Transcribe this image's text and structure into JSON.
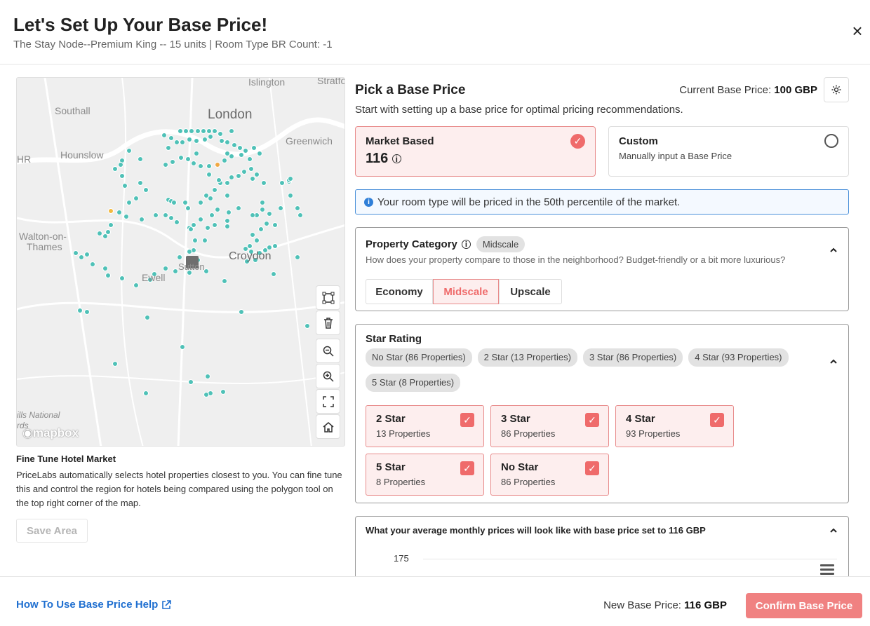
{
  "header": {
    "title": "Let's Set Up Your Base Price!",
    "subtitle": "The Stay Node--Premium King -- 15 units | Room Type BR Count: -1",
    "close_icon": "close-icon"
  },
  "map": {
    "labels": {
      "islington": "Islington",
      "stratford": "Stratford",
      "southall": "Southall",
      "london": "London",
      "greenwich": "Greenwich",
      "hounslow": "Hounslow",
      "hr": "HR",
      "walton": "Walton-on-",
      "thames": "Thames",
      "croydon": "Croydon",
      "ewell": "Ewell",
      "sutton": "Sutton",
      "hills": "ills National",
      "hills2": "rds"
    },
    "attribution": "mapbox",
    "tools": [
      "polygon-draw-icon",
      "trash-icon",
      "zoom-out-icon",
      "zoom-in-icon",
      "fullscreen-icon",
      "home-icon"
    ]
  },
  "fine_tune": {
    "title": "Fine Tune Hotel Market",
    "text": "PriceLabs automatically selects hotel properties closest to you. You can fine tune this and control the region for hotels being compared using the polygon tool on the top right corner of the map.",
    "save_label": "Save Area"
  },
  "pick": {
    "title": "Pick a Base Price",
    "current_label": "Current Base Price:",
    "current_value": "100 GBP",
    "description": "Start with setting up a base price for optimal pricing recommendations.",
    "market": {
      "title": "Market Based",
      "value": "116",
      "selected": true
    },
    "custom": {
      "title": "Custom",
      "subtitle": "Manually input a Base Price",
      "selected": false
    },
    "info": "Your room type will be priced in the 50th percentile of the market."
  },
  "category": {
    "title": "Property Category",
    "badge": "Midscale",
    "description": "How does your property compare to those in the neighborhood? Budget-friendly or a bit more luxurious?",
    "options": [
      "Economy",
      "Midscale",
      "Upscale"
    ],
    "selected": "Midscale"
  },
  "star_rating": {
    "title": "Star Rating",
    "pills": [
      "No Star (86 Properties)",
      "2 Star (13 Properties)",
      "3 Star (86 Properties)",
      "4 Star (93 Properties)",
      "5 Star (8 Properties)"
    ],
    "boxes": [
      {
        "title": "2 Star",
        "sub": "13 Properties",
        "checked": true
      },
      {
        "title": "3 Star",
        "sub": "86 Properties",
        "checked": true
      },
      {
        "title": "4 Star",
        "sub": "93 Properties",
        "checked": true
      },
      {
        "title": "5 Star",
        "sub": "8 Properties",
        "checked": true
      },
      {
        "title": "No Star",
        "sub": "86 Properties",
        "checked": true
      }
    ]
  },
  "chart_card": {
    "title": "What your average monthly prices will look like with base price set to 116 GBP",
    "tick": "175"
  },
  "footer": {
    "help_label": "How To Use Base Price Help",
    "new_price_label": "New Base Price:",
    "new_price_value": "116 GBP",
    "confirm_label": "Confirm Base Price"
  },
  "colors": {
    "accent": "#ef6b6b",
    "accent_bg": "#fdeeee",
    "link": "#1f6fd0",
    "info_border": "#4a90d9",
    "marker": "#4fc1b7"
  }
}
